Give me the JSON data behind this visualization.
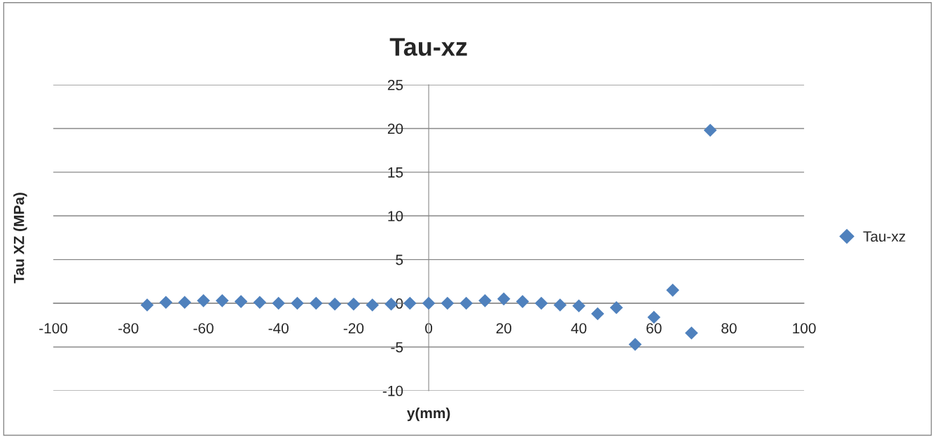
{
  "chart_data": {
    "type": "scatter",
    "title": "Tau-xz",
    "xlabel": "y(mm)",
    "ylabel": "Tau XZ (MPa)",
    "x": [
      -75,
      -70,
      -65,
      -60,
      -55,
      -50,
      -45,
      -40,
      -35,
      -30,
      -25,
      -20,
      -15,
      -10,
      -5,
      0,
      5,
      10,
      15,
      20,
      25,
      30,
      35,
      40,
      45,
      50,
      55,
      60,
      65,
      70,
      75
    ],
    "series": [
      {
        "name": "Tau-xz",
        "color": "#4f81bd",
        "values": [
          -0.2,
          0.1,
          0.1,
          0.3,
          0.3,
          0.2,
          0.1,
          0.0,
          0.0,
          0.0,
          -0.1,
          -0.1,
          -0.2,
          -0.1,
          0.0,
          0.0,
          0.0,
          0.0,
          0.3,
          0.5,
          0.2,
          0.0,
          -0.2,
          -0.3,
          -1.2,
          -0.5,
          -4.7,
          -1.6,
          1.5,
          -3.4,
          19.8
        ]
      }
    ],
    "xlim": [
      -100,
      100
    ],
    "xticks": [
      -100,
      -80,
      -60,
      -40,
      -20,
      0,
      20,
      40,
      60,
      80,
      100
    ],
    "ylim": [
      -10,
      25
    ],
    "yticks": [
      -10,
      -5,
      0,
      5,
      10,
      15,
      20,
      25
    ],
    "grid": "y",
    "legend": "right",
    "marker": "diamond"
  }
}
